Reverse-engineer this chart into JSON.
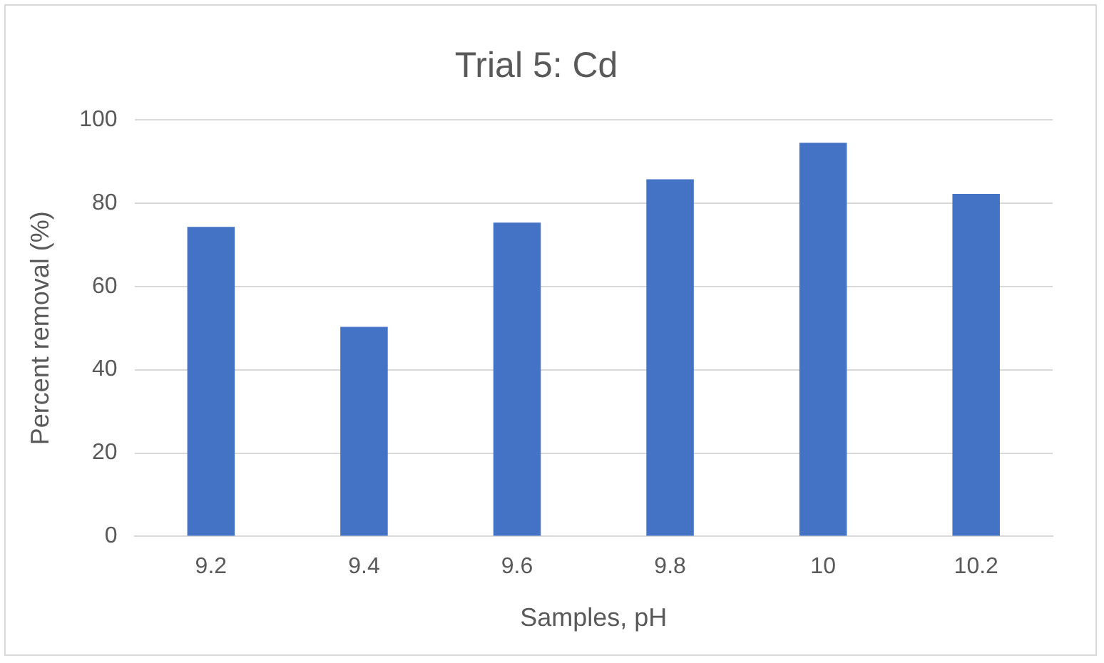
{
  "chart_data": {
    "type": "bar",
    "title": "Trial 5: Cd",
    "xlabel": "Samples, pH",
    "ylabel": "Percent removal (%)",
    "categories": [
      "9.2",
      "9.4",
      "9.6",
      "9.8",
      "10",
      "10.2"
    ],
    "values": [
      74.3,
      50.3,
      75.3,
      85.7,
      94.5,
      82.2
    ],
    "color": "#4472c4",
    "ylim": [
      0,
      100
    ],
    "yticks": [
      0,
      20,
      40,
      60,
      80,
      100
    ],
    "grid": "y",
    "legend": false
  }
}
